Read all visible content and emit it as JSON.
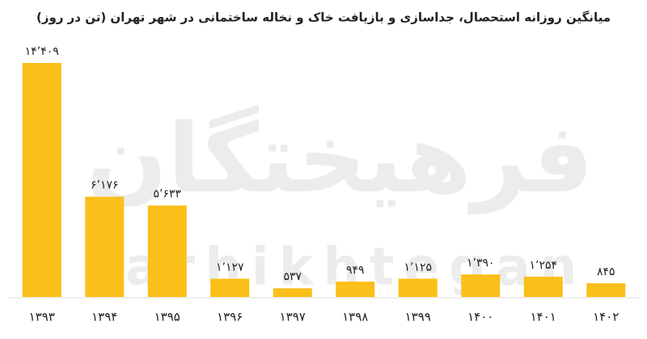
{
  "chart_data": {
    "type": "bar",
    "title": "میانگین روزانه استحصال، جداسازی و بازیافت خاک و نخاله ساختمانی در شهر تهران (تن در روز)",
    "watermark": [
      "فرهیختگان",
      "farhikhtegan"
    ],
    "categories": [
      "۱۳۹۳",
      "۱۳۹۴",
      "۱۳۹۵",
      "۱۳۹۶",
      "۱۳۹۷",
      "۱۳۹۸",
      "۱۳۹۹",
      "۱۴۰۰",
      "۱۴۰۱",
      "۱۴۰۲"
    ],
    "values": [
      14409,
      6176,
      5633,
      1127,
      537,
      949,
      1125,
      1390,
      1254,
      845
    ],
    "value_labels": [
      "۱۴٬۴۰۹",
      "۶٬۱۷۶",
      "۵٬۶۳۳",
      "۱٬۱۲۷",
      "۵۳۷",
      "۹۴۹",
      "۱٬۱۲۵",
      "۱٬۳۹۰",
      "۱٬۲۵۴",
      "۸۴۵"
    ],
    "color": "#fbbf1a"
  }
}
